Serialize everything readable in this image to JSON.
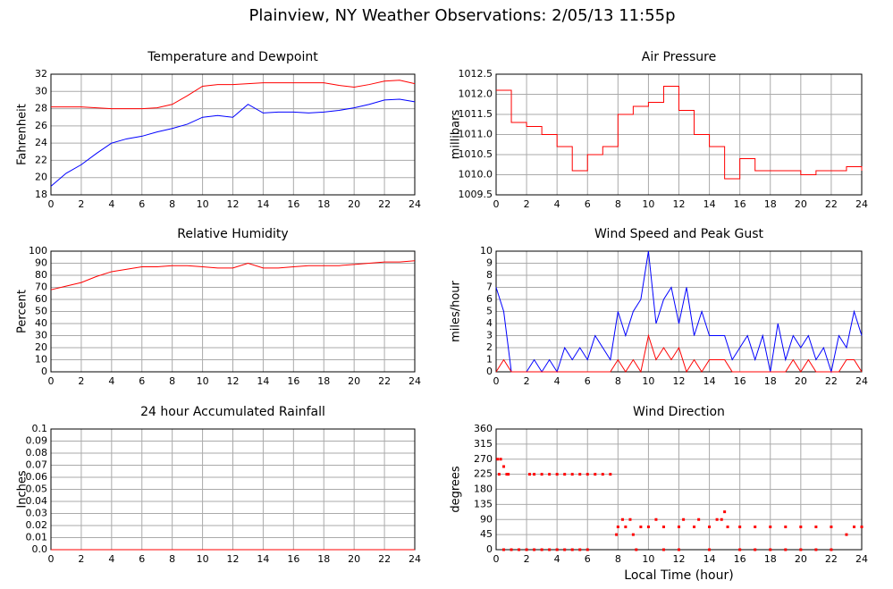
{
  "title": "Plainview, NY Weather Observations: 2/05/13 11:55p",
  "chart_data": [
    {
      "type": "line",
      "title": "Temperature and Dewpoint",
      "ylabel": "Fahrenheit",
      "grid": true,
      "x": [
        0,
        1,
        2,
        3,
        4,
        5,
        6,
        7,
        8,
        9,
        10,
        11,
        12,
        13,
        14,
        15,
        16,
        17,
        18,
        19,
        20,
        21,
        22,
        23,
        24
      ],
      "series": [
        {
          "name": "Temperature",
          "color": "#ff0000",
          "values": [
            28.2,
            28.2,
            28.2,
            28.1,
            28.0,
            28.0,
            28.0,
            28.1,
            28.5,
            29.5,
            30.6,
            30.8,
            30.8,
            30.9,
            31.0,
            31.0,
            31.0,
            31.0,
            31.0,
            30.7,
            30.5,
            30.8,
            31.2,
            31.3,
            30.9
          ]
        },
        {
          "name": "Dewpoint",
          "color": "#0000ff",
          "values": [
            19.0,
            20.5,
            21.5,
            22.8,
            24.0,
            24.5,
            24.8,
            25.3,
            25.7,
            26.2,
            27.0,
            27.2,
            27.0,
            28.5,
            27.5,
            27.6,
            27.6,
            27.5,
            27.6,
            27.8,
            28.1,
            28.5,
            29.0,
            29.1,
            28.8
          ]
        }
      ],
      "xlim": [
        0,
        24
      ],
      "xticks": [
        0,
        2,
        4,
        6,
        8,
        10,
        12,
        14,
        16,
        18,
        20,
        22,
        24
      ],
      "ylim": [
        18,
        32
      ],
      "yticks": [
        18,
        20,
        22,
        24,
        26,
        28,
        30,
        32
      ]
    },
    {
      "type": "line",
      "step": true,
      "title": "Air Pressure",
      "ylabel": "millibars",
      "grid": true,
      "x": [
        0,
        1,
        2,
        3,
        4,
        5,
        6,
        7,
        8,
        9,
        10,
        11,
        12,
        13,
        14,
        15,
        16,
        17,
        18,
        19,
        20,
        21,
        22,
        23,
        24
      ],
      "series": [
        {
          "name": "Pressure",
          "color": "#ff0000",
          "values": [
            1012.1,
            1011.3,
            1011.2,
            1011.0,
            1010.7,
            1010.1,
            1010.5,
            1010.7,
            1011.5,
            1011.7,
            1011.8,
            1012.2,
            1011.6,
            1011.0,
            1010.7,
            1009.9,
            1010.4,
            1010.1,
            1010.1,
            1010.1,
            1010.0,
            1010.1,
            1010.1,
            1010.2,
            1010.1
          ]
        }
      ],
      "xlim": [
        0,
        24
      ],
      "xticks": [
        0,
        2,
        4,
        6,
        8,
        10,
        12,
        14,
        16,
        18,
        20,
        22,
        24
      ],
      "ylim": [
        1009.5,
        1012.5
      ],
      "yticks": [
        1009.5,
        {
          "value": 1010,
          "label": "1010.0"
        },
        1010.5,
        {
          "value": 1011,
          "label": "1011.0"
        },
        1011.5,
        {
          "value": 1012,
          "label": "1012.0"
        },
        1012.5
      ]
    },
    {
      "type": "line",
      "title": "Relative Humidity",
      "ylabel": "Percent",
      "grid": true,
      "x": [
        0,
        1,
        2,
        3,
        4,
        5,
        6,
        7,
        8,
        9,
        10,
        11,
        12,
        13,
        14,
        15,
        16,
        17,
        18,
        19,
        20,
        21,
        22,
        23,
        24
      ],
      "series": [
        {
          "name": "Humidity",
          "color": "#ff0000",
          "values": [
            68,
            71,
            74,
            79,
            83,
            85,
            87,
            87,
            88,
            88,
            87,
            86,
            86,
            90,
            86,
            86,
            87,
            88,
            88,
            88,
            89,
            90,
            91,
            91,
            92
          ]
        }
      ],
      "xlim": [
        0,
        24
      ],
      "xticks": [
        0,
        2,
        4,
        6,
        8,
        10,
        12,
        14,
        16,
        18,
        20,
        22,
        24
      ],
      "ylim": [
        0,
        100
      ],
      "yticks": [
        0,
        10,
        20,
        30,
        40,
        50,
        60,
        70,
        80,
        90,
        100
      ]
    },
    {
      "type": "line",
      "title": "Wind Speed and Peak Gust",
      "ylabel": "miles/hour",
      "grid": true,
      "x": [
        0,
        0.5,
        1,
        1.5,
        2,
        2.5,
        3,
        3.5,
        4,
        4.5,
        5,
        5.5,
        6,
        6.5,
        7,
        7.5,
        8,
        8.5,
        9,
        9.5,
        10,
        10.5,
        11,
        11.5,
        12,
        12.5,
        13,
        13.5,
        14,
        14.5,
        15,
        15.5,
        16,
        16.5,
        17,
        17.5,
        18,
        18.5,
        19,
        19.5,
        20,
        20.5,
        21,
        21.5,
        22,
        22.5,
        23,
        23.5,
        24
      ],
      "series": [
        {
          "name": "Peak Gust",
          "color": "#0000ff",
          "values": [
            7,
            5,
            0,
            0,
            0,
            1,
            0,
            1,
            0,
            2,
            1,
            2,
            1,
            3,
            2,
            1,
            5,
            3,
            5,
            6,
            10,
            4,
            6,
            7,
            4,
            7,
            3,
            5,
            3,
            3,
            3,
            1,
            2,
            3,
            1,
            3,
            0,
            4,
            1,
            3,
            2,
            3,
            1,
            2,
            0,
            3,
            2,
            5,
            3
          ]
        },
        {
          "name": "Wind Speed",
          "color": "#ff0000",
          "values": [
            0,
            1,
            0,
            0,
            0,
            0,
            0,
            0,
            0,
            0,
            0,
            0,
            0,
            0,
            0,
            0,
            1,
            0,
            1,
            0,
            3,
            1,
            2,
            1,
            2,
            0,
            1,
            0,
            1,
            1,
            1,
            0,
            0,
            0,
            0,
            0,
            0,
            0,
            0,
            1,
            0,
            1,
            0,
            0,
            0,
            0,
            1,
            1,
            0
          ]
        }
      ],
      "xlim": [
        0,
        24
      ],
      "xticks": [
        0,
        2,
        4,
        6,
        8,
        10,
        12,
        14,
        16,
        18,
        20,
        22,
        24
      ],
      "ylim": [
        0,
        10
      ],
      "yticks": [
        0,
        1,
        2,
        3,
        4,
        5,
        6,
        7,
        8,
        9,
        10
      ]
    },
    {
      "type": "line",
      "title": "24 hour Accumulated Rainfall",
      "ylabel": "Inches",
      "grid": true,
      "x": [
        0,
        24
      ],
      "series": [
        {
          "name": "Rainfall",
          "color": "#ff0000",
          "values": [
            0,
            0
          ]
        }
      ],
      "xlim": [
        0,
        24
      ],
      "xticks": [
        0,
        2,
        4,
        6,
        8,
        10,
        12,
        14,
        16,
        18,
        20,
        22,
        24
      ],
      "ylim": [
        0,
        0.1
      ],
      "yticks": [
        {
          "value": 0,
          "label": "0.0"
        },
        0.01,
        0.02,
        0.03,
        0.04,
        0.05,
        0.06,
        0.07,
        0.08,
        0.09,
        0.1
      ]
    },
    {
      "type": "scatter",
      "title": "Wind Direction",
      "ylabel": "degrees",
      "xlabel": "Local Time (hour)",
      "grid": true,
      "color": "#ff0000",
      "x": [
        0.1,
        0.3,
        0.5,
        0.2,
        0.7,
        0.8,
        2.2,
        2.5,
        3,
        3.5,
        4,
        4.5,
        5,
        5.5,
        6,
        6.5,
        7,
        7.5,
        0.5,
        1,
        1.5,
        2,
        2.5,
        3,
        3.5,
        4,
        4.5,
        5,
        5.5,
        6,
        7.9,
        8,
        8.5,
        9,
        8.3,
        8.8,
        9.5,
        10,
        10.5,
        11,
        12,
        12.3,
        13,
        13.3,
        14,
        14.5,
        14.8,
        15,
        15.2,
        16,
        17,
        18,
        19,
        20,
        21,
        22,
        23,
        23.5,
        24,
        9.2,
        11,
        12,
        14,
        16,
        17,
        18,
        19,
        20,
        21,
        22
      ],
      "values": [
        270,
        270,
        248,
        225,
        225,
        225,
        225,
        225,
        225,
        225,
        225,
        225,
        225,
        225,
        225,
        225,
        225,
        225,
        0,
        0,
        0,
        0,
        0,
        0,
        0,
        0,
        0,
        0,
        0,
        0,
        45,
        68,
        68,
        45,
        90,
        90,
        68,
        68,
        90,
        68,
        68,
        90,
        68,
        90,
        68,
        90,
        90,
        113,
        68,
        68,
        68,
        68,
        68,
        68,
        68,
        68,
        45,
        68,
        68,
        0,
        0,
        0,
        0,
        0,
        0,
        0,
        0,
        0,
        0,
        0
      ],
      "xlim": [
        0,
        24
      ],
      "xticks": [
        0,
        2,
        4,
        6,
        8,
        10,
        12,
        14,
        16,
        18,
        20,
        22,
        24
      ],
      "ylim": [
        0,
        360
      ],
      "yticks": [
        0,
        45,
        90,
        135,
        180,
        225,
        270,
        315,
        360
      ]
    }
  ]
}
